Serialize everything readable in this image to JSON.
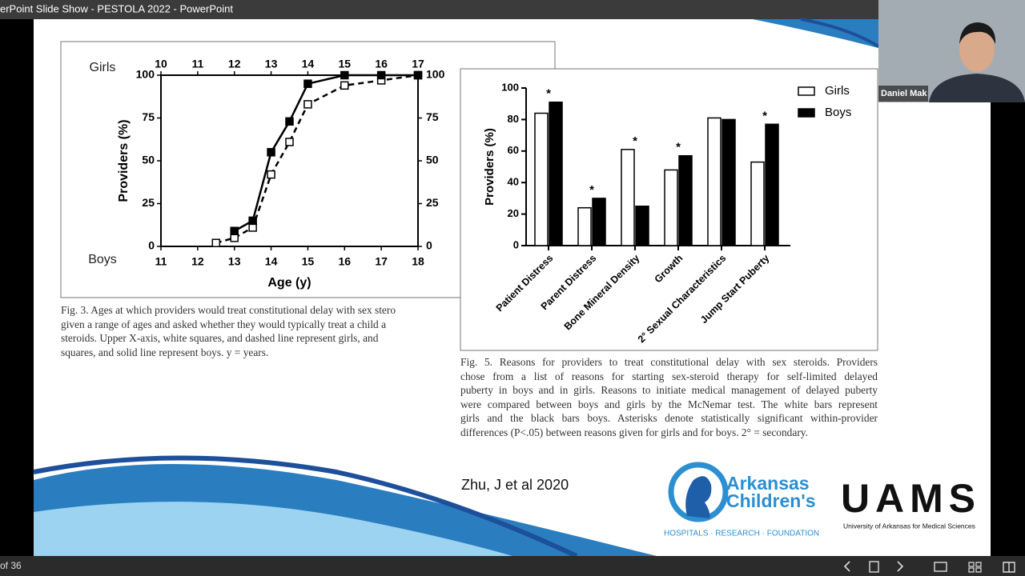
{
  "window": {
    "title": "erPoint Slide Show  -  PESTOLA 2022  -  PowerPoint",
    "slide_counter": "of 36"
  },
  "video": {
    "participant": "Daniel Mak"
  },
  "chart_data": [
    {
      "type": "line",
      "xlabel": "Age (y)",
      "ylabel": "Providers (%)",
      "xlim": [
        11,
        18
      ],
      "xticks": [
        11,
        12,
        13,
        14,
        15,
        16,
        17,
        18
      ],
      "x2lim": [
        10,
        17
      ],
      "x2ticks": [
        10,
        11,
        12,
        13,
        14,
        15,
        16,
        17
      ],
      "ylim": [
        0,
        100
      ],
      "yticks": [
        0,
        25,
        50,
        75,
        100
      ],
      "y2lim": [
        0,
        100
      ],
      "y2ticks": [
        0,
        25,
        50,
        75,
        100
      ],
      "series": [
        {
          "name": "Girls",
          "axis": "x2",
          "color": "#000000",
          "marker_fill": "#ffffff",
          "dashed": true,
          "x": [
            11.5,
            12,
            12.5,
            13,
            13.5,
            14,
            15,
            16,
            17
          ],
          "values": [
            2,
            5,
            11,
            42,
            61,
            83,
            94,
            97,
            100
          ]
        },
        {
          "name": "Boys",
          "color": "#000000",
          "marker_fill": "#000000",
          "dashed": false,
          "x": [
            13,
            13.5,
            14,
            14.5,
            15,
            16,
            17,
            18
          ],
          "values": [
            9,
            15,
            55,
            73,
            95,
            100,
            100,
            100
          ]
        }
      ]
    },
    {
      "type": "bar",
      "ylabel": "Providers (%)",
      "categories": [
        "Patient Distress",
        "Parent Distress",
        "Bone Mineral Density",
        "Growth",
        "2° Sexual Characteristics",
        "Jump Start Puberty"
      ],
      "series": [
        {
          "name": "Girls",
          "color": "#ffffff",
          "values": [
            84,
            24,
            61,
            48,
            81,
            53
          ]
        },
        {
          "name": "Boys",
          "color": "#000000",
          "values": [
            91,
            30,
            25,
            57,
            80,
            77
          ]
        }
      ],
      "significance": [
        "*",
        "*",
        "*",
        "*",
        null,
        "*"
      ],
      "ylim": [
        0,
        100
      ],
      "yticks": [
        0,
        20,
        40,
        60,
        80,
        100
      ],
      "legend": "upper right"
    }
  ],
  "slide": {
    "fig3_caption": [
      "Fig. 3. Ages at which providers would treat constitutional delay with sex stero",
      "given a range of ages and asked whether they would typically treat a child a",
      "steroids. Upper X-axis, white squares, and dashed line represent girls, and",
      "squares, and solid line represent boys. y = years."
    ],
    "fig5_caption": [
      "Fig. 5. Reasons for providers to treat constitutional delay with sex steroids. Providers",
      "chose from a list of reasons for starting sex-steroid therapy for self-limited delayed",
      "puberty in boys and in girls. Reasons to initiate medical management of delayed puberty",
      "were compared between boys and girls by the McNemar test. The white bars represent",
      "girls and the black bars boys. Asterisks denote statistically significant within-provider",
      "differences (P<.05) between reasons given for girls and for boys. 2° = secondary."
    ],
    "citation": "Zhu, J et al 2020",
    "logo_ach": {
      "line1": "Arkansas",
      "line2": "Children's",
      "tagline": "HOSPITALS · RESEARCH · FOUNDATION"
    },
    "logo_uams": {
      "name": "UAMS",
      "subtitle": "University of Arkansas for Medical Sciences"
    }
  }
}
